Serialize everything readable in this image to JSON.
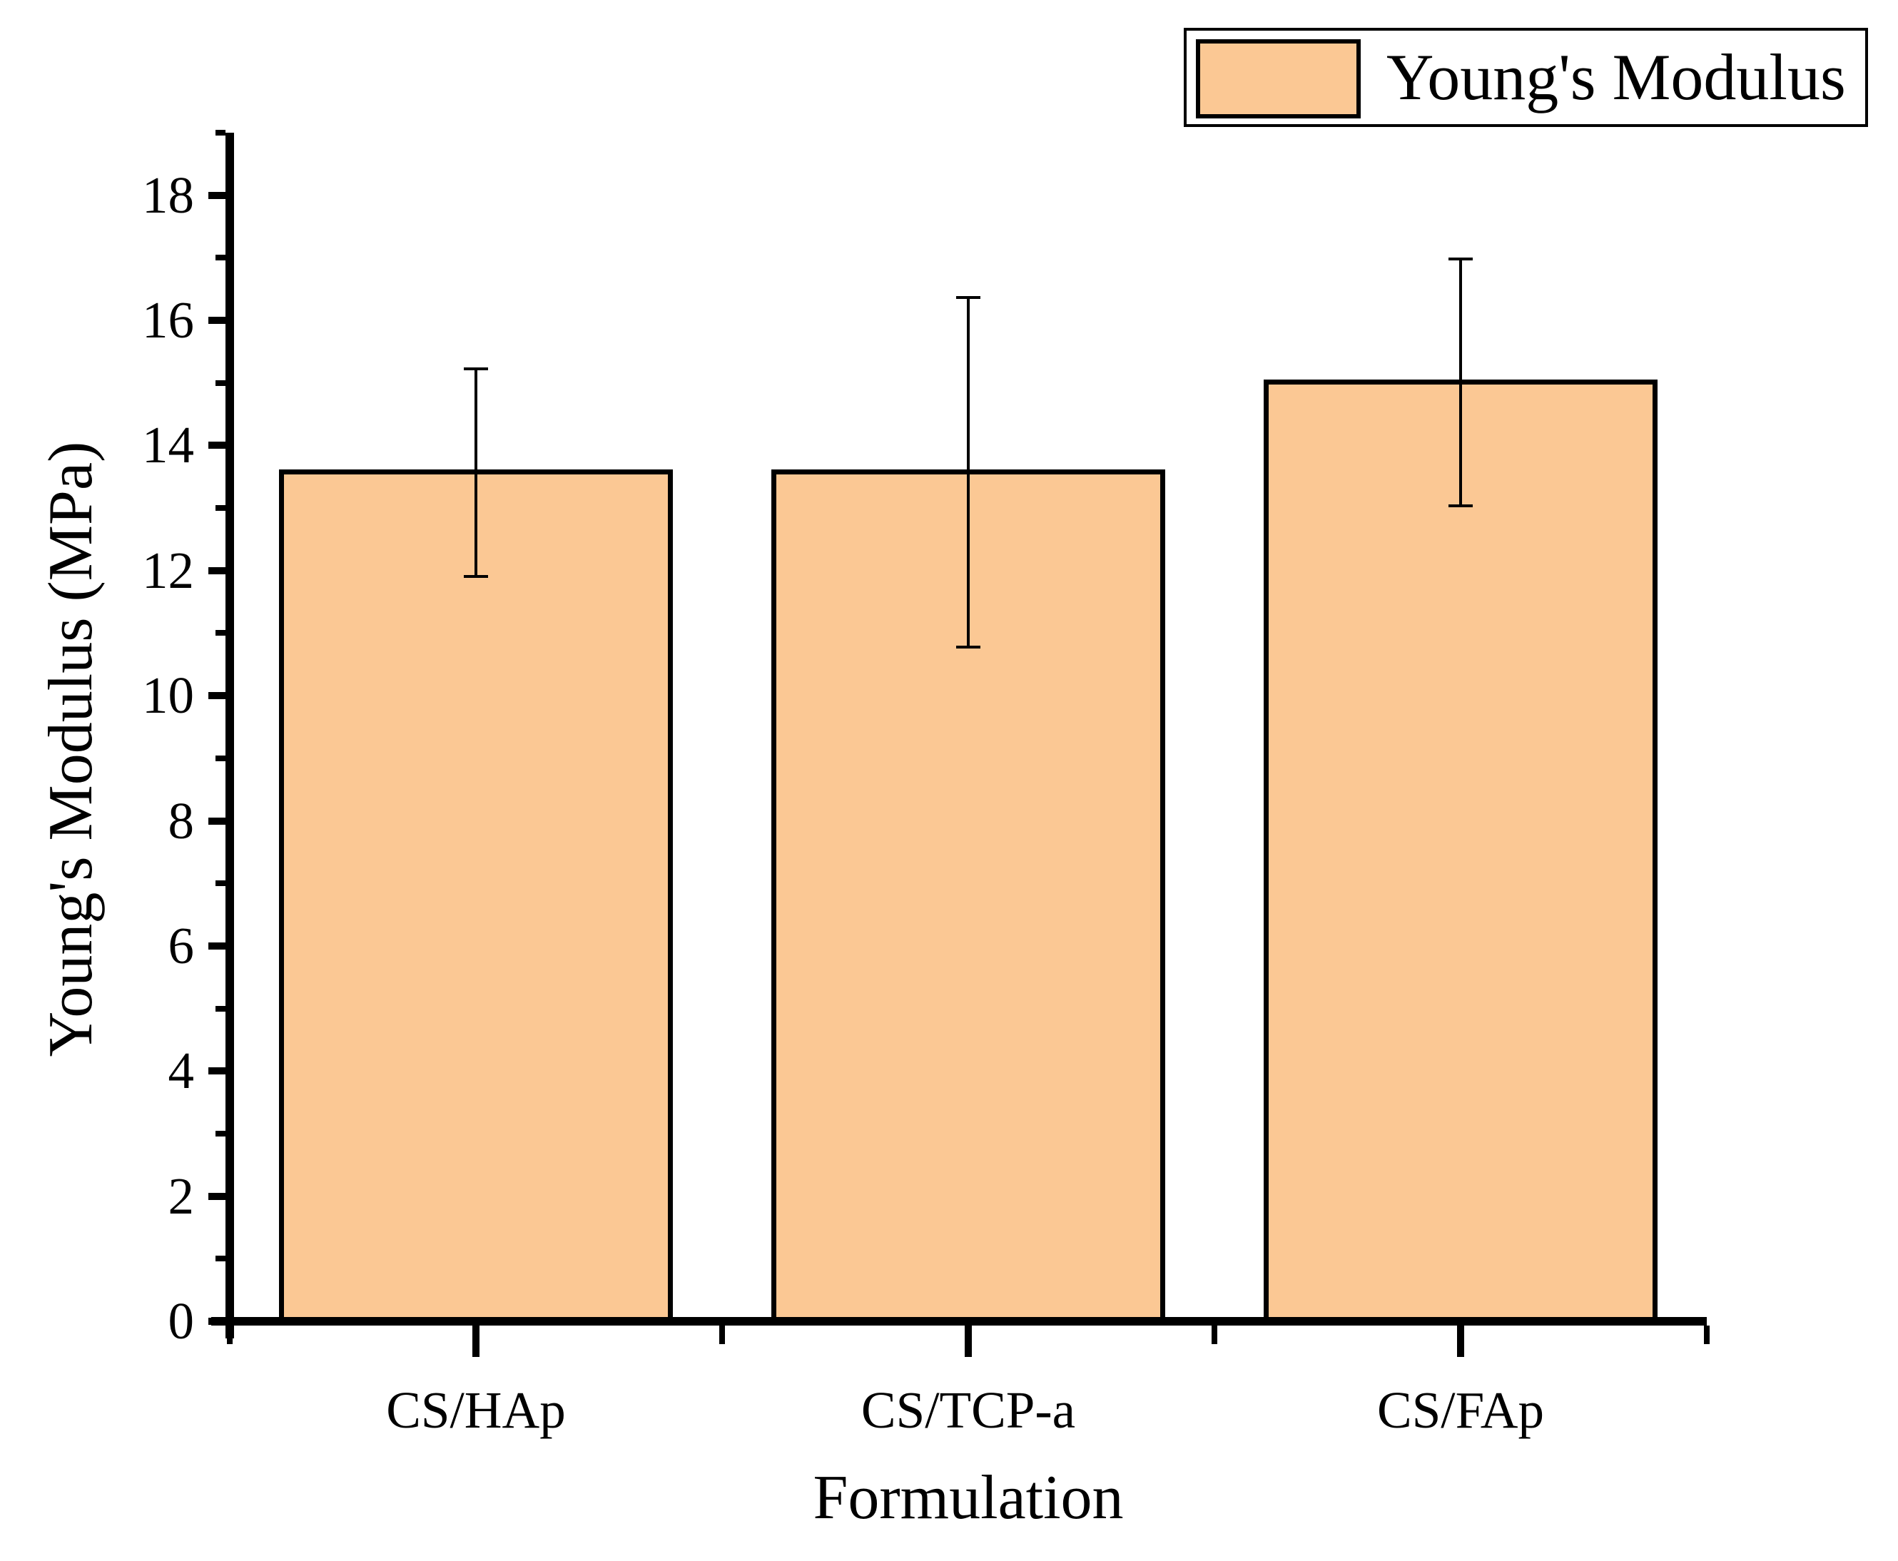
{
  "figure": {
    "background": "#ffffff"
  },
  "legend": {
    "label": "Young's Modulus",
    "swatch_fill": "#FBC894",
    "swatch_border": "#000000",
    "position": "top-right"
  },
  "axes": {
    "y_title": "Young's Modulus (MPa)",
    "x_title": "Formulation",
    "y_tick_labels": [
      "0",
      "2",
      "4",
      "6",
      "8",
      "10",
      "12",
      "14",
      "16",
      "18"
    ],
    "x_tick_labels": [
      "CS/HAp",
      "CS/TCP-a",
      "CS/FAp"
    ]
  },
  "chart_data": {
    "type": "bar",
    "categories": [
      "CS/HAp",
      "CS/TCP-a",
      "CS/FAp"
    ],
    "series": [
      {
        "name": "Young's Modulus",
        "values": [
          13.57,
          13.57,
          15.01
        ],
        "errors": [
          1.66,
          2.79,
          1.97
        ]
      }
    ],
    "title": "",
    "xlabel": "Formulation",
    "ylabel": "Young's Modulus (MPa)",
    "ylim": [
      0,
      19
    ],
    "y_major_step": 2,
    "y_minor_step": 1,
    "bar_fill": "#FBC894",
    "bar_edge": "#000000",
    "error_color": "#000000",
    "grid": false,
    "legend_position": "top-right"
  }
}
